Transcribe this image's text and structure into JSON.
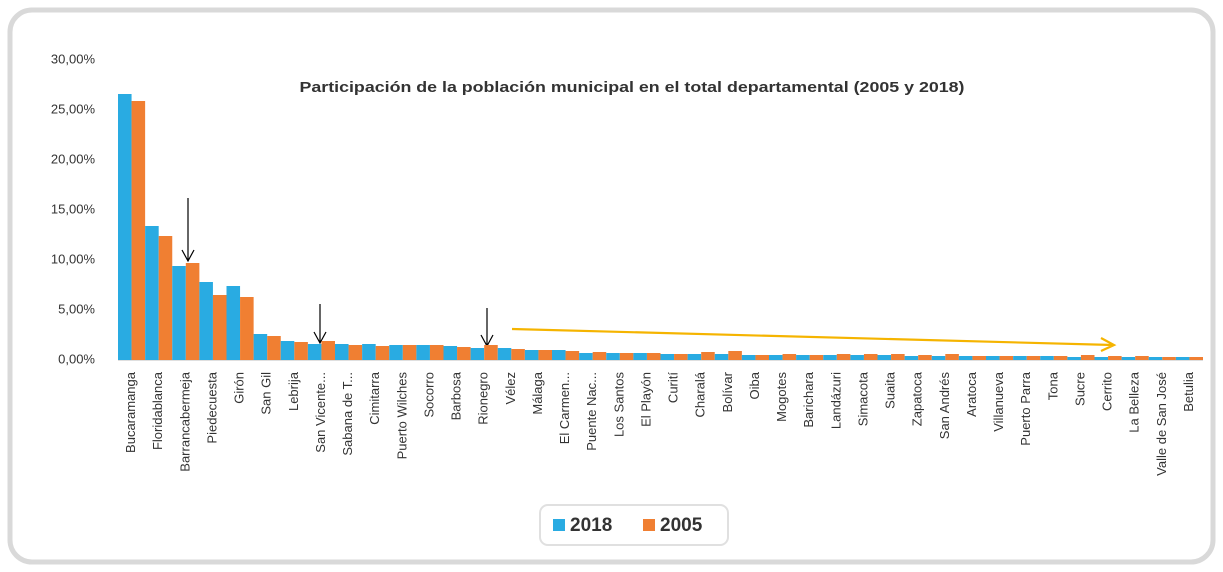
{
  "chart_data": {
    "type": "bar",
    "title": "Participación de la población municipal en el total departamental (2005 y 2018)",
    "categories": [
      "Bucaramanga",
      "Floridablanca",
      "Barrancabermeja",
      "Piedecuesta",
      "Girón",
      "San Gil",
      "Lebrija",
      "San Vicente...",
      "Sabana de T...",
      "Cimitarra",
      "Puerto Wilches",
      "Socorro",
      "Barbosa",
      "Rionegro",
      "Vélez",
      "Málaga",
      "El Carmen...",
      "Puente Nac...",
      "Los Santos",
      "El Playón",
      "Curití",
      "Charalá",
      "Bolívar",
      "Oiba",
      "Mogotes",
      "Barichara",
      "Landázuri",
      "Simacota",
      "Suaita",
      "Zapatoca",
      "San Andrés",
      "Aratoca",
      "Villanueva",
      "Puerto Parra",
      "Tona",
      "Sucre",
      "Cerrito",
      "La Belleza",
      "Valle de San José",
      "Betulia"
    ],
    "series": [
      {
        "name": "2018",
        "color": "#29abe2",
        "values": [
          26.6,
          13.4,
          9.4,
          7.8,
          7.4,
          2.6,
          1.9,
          1.6,
          1.6,
          1.6,
          1.5,
          1.5,
          1.4,
          1.2,
          1.2,
          1.0,
          1.0,
          0.7,
          0.7,
          0.7,
          0.6,
          0.6,
          0.6,
          0.5,
          0.5,
          0.5,
          0.5,
          0.5,
          0.5,
          0.4,
          0.4,
          0.4,
          0.4,
          0.4,
          0.4,
          0.3,
          0.3,
          0.3,
          0.3,
          0.3
        ]
      },
      {
        "name": "2005",
        "color": "#f07f32",
        "values": [
          25.9,
          12.4,
          9.7,
          6.5,
          6.3,
          2.4,
          1.8,
          1.9,
          1.5,
          1.4,
          1.5,
          1.5,
          1.3,
          1.5,
          1.1,
          1.0,
          0.9,
          0.8,
          0.7,
          0.7,
          0.6,
          0.8,
          0.9,
          0.5,
          0.6,
          0.5,
          0.6,
          0.6,
          0.6,
          0.5,
          0.6,
          0.4,
          0.4,
          0.4,
          0.4,
          0.5,
          0.4,
          0.4,
          0.3,
          0.3
        ]
      }
    ],
    "ylim": [
      0,
      30
    ],
    "yticks": [
      {
        "value": 0,
        "label": "0,00%"
      },
      {
        "value": 5,
        "label": "5,00%"
      },
      {
        "value": 10,
        "label": "10,00%"
      },
      {
        "value": 15,
        "label": "15,00%"
      },
      {
        "value": 20,
        "label": "20,00%"
      },
      {
        "value": 25,
        "label": "25,00%"
      },
      {
        "value": 30,
        "label": "30,00%"
      }
    ],
    "legend": "bottom"
  }
}
